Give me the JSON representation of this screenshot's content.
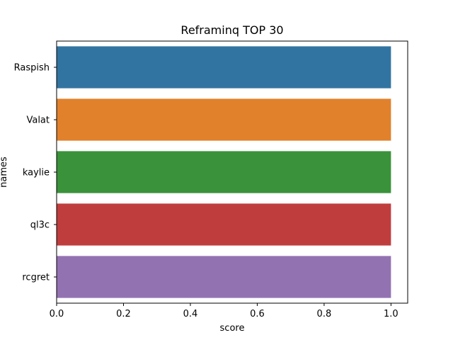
{
  "chart_data": {
    "type": "bar",
    "orientation": "horizontal",
    "title": "Reframinq TOP 30",
    "xlabel": "score",
    "ylabel": "names",
    "categories": [
      "Raspish",
      "Valat",
      "kaylie",
      "ql3c",
      "rcgret"
    ],
    "values": [
      1.0,
      1.0,
      1.0,
      1.0,
      1.0
    ],
    "colors": [
      "#3274a1",
      "#e1812c",
      "#3a923a",
      "#c03d3e",
      "#9372b2"
    ],
    "xlim": [
      0,
      1.05
    ],
    "xticks": [
      "0.0",
      "0.2",
      "0.4",
      "0.6",
      "0.8",
      "1.0"
    ],
    "grid": false,
    "legend": "none"
  }
}
